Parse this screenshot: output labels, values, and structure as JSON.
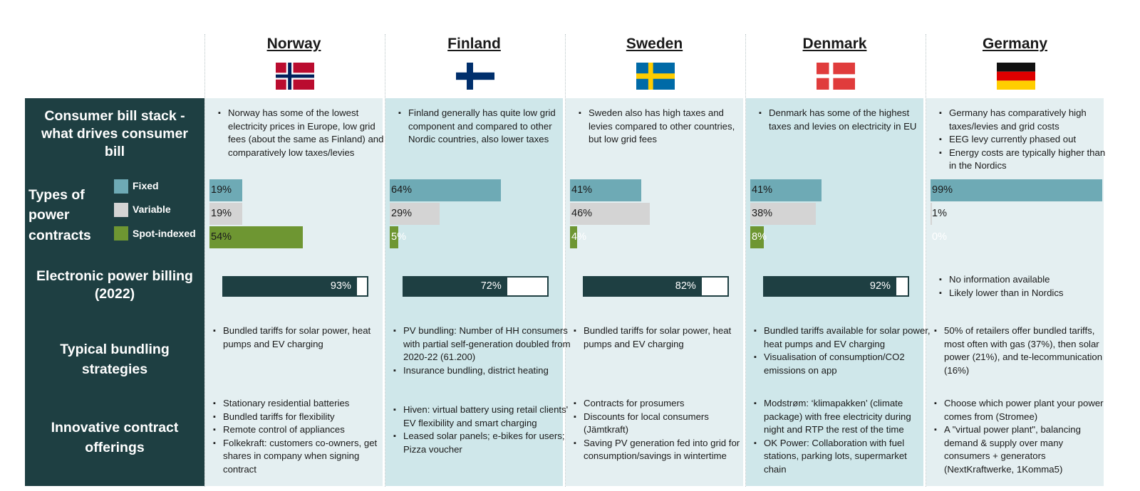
{
  "columns": [
    {
      "name": "Norway",
      "flag": "norway-flag-icon"
    },
    {
      "name": "Finland",
      "flag": "finland-flag-icon"
    },
    {
      "name": "Sweden",
      "flag": "sweden-flag-icon"
    },
    {
      "name": "Denmark",
      "flag": "denmark-flag-icon"
    },
    {
      "name": "Germany",
      "flag": "germany-flag-icon"
    }
  ],
  "row_labels": {
    "bill_stack": "Consumer bill stack - what drives consumer bill",
    "contracts": "Types of power contracts",
    "billing": "Electronic power billing (2022)",
    "bundling": "Typical bundling strategies",
    "innovative": "Innovative contract offerings"
  },
  "legend": {
    "fixed": "Fixed",
    "variable": "Variable",
    "spot": "Spot-indexed"
  },
  "bill_stack": [
    [
      "Norway has some of the lowest electricity prices in Europe, low grid fees (about the same as Finland) and comparatively low taxes/levies"
    ],
    [
      "Finland generally has quite low grid component and compared to other Nordic countries, also lower taxes"
    ],
    [
      "Sweden also has high taxes and levies compared to other countries, but low grid fees"
    ],
    [
      "Denmark has some of the highest taxes and levies on electricity in EU"
    ],
    [
      "Germany has comparatively high taxes/levies and grid costs",
      "EEG levy currently phased out",
      "Energy costs are typically higher than in the Nordics"
    ]
  ],
  "chart_data": [
    {
      "type": "bar",
      "title": "Types of power contracts",
      "orientation": "horizontal",
      "unit": "%",
      "categories": [
        "Norway",
        "Finland",
        "Sweden",
        "Denmark",
        "Germany"
      ],
      "series": [
        {
          "name": "Fixed",
          "color": "#6eaab5",
          "values": [
            19,
            64,
            41,
            41,
            99
          ]
        },
        {
          "name": "Variable",
          "color": "#d4d4d4",
          "values": [
            19,
            29,
            46,
            38,
            1
          ]
        },
        {
          "name": "Spot-indexed",
          "color": "#6e9632",
          "values": [
            54,
            5,
            4,
            8,
            0
          ]
        }
      ],
      "labels": [
        [
          "19%",
          "19%",
          "54%"
        ],
        [
          "64%",
          "29%",
          "5%"
        ],
        [
          "41%",
          "46%",
          "4%"
        ],
        [
          "41%",
          "38%",
          "8%"
        ],
        [
          "99%",
          "1%",
          "0%"
        ]
      ]
    },
    {
      "type": "bar",
      "title": "Electronic power billing (2022)",
      "unit": "%",
      "categories": [
        "Norway",
        "Finland",
        "Sweden",
        "Denmark"
      ],
      "values": [
        93,
        72,
        82,
        92
      ],
      "labels": [
        "93%",
        "72%",
        "82%",
        "92%"
      ],
      "color": "#1e3f42"
    }
  ],
  "billing_germany": [
    "No information available",
    "Likely lower than in Nordics"
  ],
  "bundling": [
    [
      "Bundled tariffs for solar power, heat pumps and EV charging"
    ],
    [
      "PV bundling: Number of HH consumers with partial self-generation doubled from 2020-22 (61.200)",
      "Insurance bundling, district heating"
    ],
    [
      "Bundled tariffs for solar power, heat pumps and EV charging"
    ],
    [
      "Bundled tariffs available for solar power, heat pumps and EV charging",
      "Visualisation of consumption/CO2 emissions on app"
    ],
    [
      "50% of retailers offer bundled tariffs, most often with gas (37%), then solar power (21%), and te-lecommunication (16%)"
    ]
  ],
  "innovative": [
    [
      "Stationary residential batteries",
      "Bundled tariffs for flexibility",
      "Remote control of appliances",
      "Folkekraft: customers co-owners, get shares in company when signing contract"
    ],
    [
      "Hiven: virtual battery using retail clients' EV flexibility and smart charging",
      "Leased solar panels; e-bikes for users; Pizza voucher"
    ],
    [
      "Contracts for prosumers",
      "Discounts for local consumers (Jämtkraft)",
      "Saving PV generation fed into grid for consumption/savings in wintertime"
    ],
    [
      "Modstrøm: ‘klimapakken’ (climate package) with free electricity during night and RTP the rest of the time",
      "OK Power: Collaboration with fuel stations, parking lots, supermarket chain"
    ],
    [
      "Choose which power plant your power comes from (Stromee)",
      "A \"virtual power plant\", balancing demand & supply over many consumers + generators (NextKraftwerke, 1Komma5)"
    ]
  ],
  "colors": {
    "dark": "#1e3f42",
    "column_alt": "#cfe7ea",
    "column_light": "#e4eff1"
  }
}
